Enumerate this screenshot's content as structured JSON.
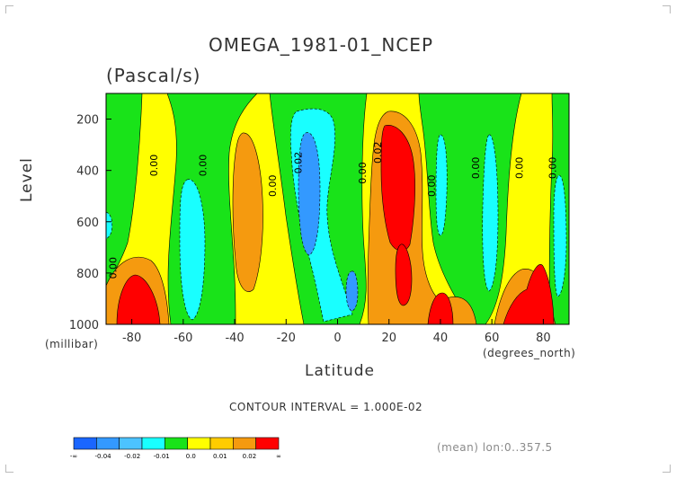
{
  "chart_data": {
    "type": "heatmap",
    "title": "OMEGA_1981-01_NCEP",
    "units": "(Pascal/s)",
    "ylabel": "Level",
    "yunits": "(millibar)",
    "xlabel": "Latitude",
    "xunits": "(degrees_north)",
    "xlim": [
      -90,
      90
    ],
    "ylim": [
      1000,
      100
    ],
    "x_ticks": [
      "-80",
      "-60",
      "-40",
      "-20",
      "0",
      "20",
      "40",
      "60",
      "80"
    ],
    "y_ticks": [
      "200",
      "400",
      "600",
      "800",
      "1000"
    ],
    "contour_interval_text": "CONTOUR INTERVAL = 1.000E-02",
    "contour_labels": [
      "0.00",
      "0.00",
      "0.00",
      "0.00",
      "0.02",
      "0.00",
      "0.02",
      "0.00",
      "0.00",
      "0.00",
      "0.00"
    ],
    "colorbar": {
      "colors": [
        "#1a66ff",
        "#3399ff",
        "#4cc3ff",
        "#19ffff",
        "#19e319",
        "#ffff00",
        "#ffcc00",
        "#f59a0f",
        "#ff0000"
      ],
      "labels": [
        "-∞",
        "-0.04",
        "-0.02",
        "-0.01",
        "0.0",
        "0.01",
        "0.02",
        "∞"
      ]
    },
    "footer": "(mean) lon:0..357.5"
  },
  "colors": {
    "green": "#19e319",
    "yellow": "#ffff00",
    "orange": "#f59a0f",
    "red": "#ff0000",
    "cyan": "#19ffff",
    "blue": "#3399ff"
  }
}
